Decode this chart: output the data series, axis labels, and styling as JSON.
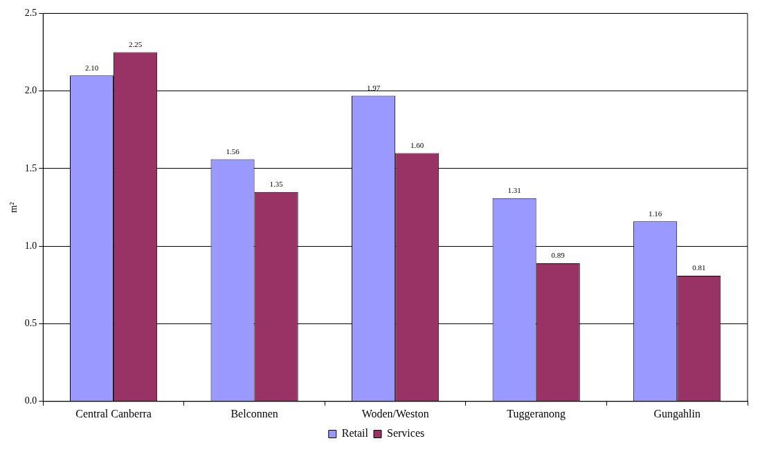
{
  "chart_data": {
    "type": "bar",
    "ylabel": "m²",
    "categories": [
      "Central Canberra",
      "Belconnen",
      "Woden/Weston",
      "Tuggeranong",
      "Gungahlin"
    ],
    "series": [
      {
        "name": "Retail",
        "color": "#9999ff",
        "values": [
          2.1,
          1.56,
          1.97,
          1.31,
          1.16
        ],
        "value_labels": [
          "2.10",
          "1.56",
          "1.97",
          "1.31",
          "1.16"
        ]
      },
      {
        "name": "Services",
        "color": "#993366",
        "values": [
          2.25,
          1.35,
          1.6,
          0.89,
          0.81
        ],
        "value_labels": [
          "2.25",
          "1.35",
          "1.60",
          "0.89",
          "0.81"
        ]
      }
    ],
    "ylim": [
      0,
      2.5
    ],
    "yticks": [
      {
        "value": 0,
        "label": "0.0"
      },
      {
        "value": 0.5,
        "label": "0.5"
      },
      {
        "value": 1,
        "label": "1.0"
      },
      {
        "value": 1.5,
        "label": "1.5"
      },
      {
        "value": 2,
        "label": "2.0"
      },
      {
        "value": 2.5,
        "label": "2.5"
      }
    ],
    "grid": "y",
    "legend": "bottom"
  }
}
